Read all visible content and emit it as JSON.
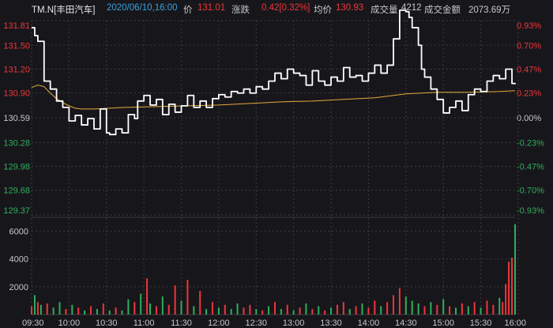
{
  "header": {
    "symbol": "TM.N[丰田汽车]",
    "datetime": "2020/06/10,16:00",
    "price_label": "价",
    "price": "131.01",
    "change_label": "涨跌",
    "change": "0.42[0.32%]",
    "avg_label": "均价",
    "avg": "130.93",
    "volume_label": "成交量",
    "volume": "4212",
    "amount_label": "成交金额",
    "amount": "2073.69万"
  },
  "colors": {
    "background": "#17171b",
    "price_line": "#ffffff",
    "avg_line": "#e7a93a",
    "up": "#f0353a",
    "down": "#2fae5c",
    "grid": "#3a3a40",
    "text_gray": "#c8c8c8",
    "datetime": "#3d9de0",
    "neutral_bar": "#d8d8d8"
  },
  "chart_data": {
    "type": "line",
    "x_ticks": [
      "09:30",
      "10:00",
      "10:30",
      "11:00",
      "11:30",
      "12:00",
      "12:30",
      "13:00",
      "13:30",
      "14:00",
      "14:30",
      "15:00",
      "15:30",
      "16:00"
    ],
    "price_axis": {
      "min": 129.37,
      "max": 131.81,
      "ticks": [
        131.81,
        131.5,
        131.2,
        130.9,
        130.59,
        130.28,
        129.98,
        129.68,
        129.37
      ],
      "pct_ticks": [
        "0.93%",
        "0.70%",
        "0.47%",
        "0.23%",
        "0.00%",
        "-0.23%",
        "-0.47%",
        "-0.70%",
        "-0.93%"
      ],
      "prev_close": 130.59
    },
    "price_series": [
      [
        0,
        131.72
      ],
      [
        1,
        131.62
      ],
      [
        2,
        131.55
      ],
      [
        4,
        131.05
      ],
      [
        6,
        130.95
      ],
      [
        8,
        130.8
      ],
      [
        10,
        130.72
      ],
      [
        12,
        130.55
      ],
      [
        14,
        130.62
      ],
      [
        16,
        130.5
      ],
      [
        18,
        130.58
      ],
      [
        20,
        130.45
      ],
      [
        22,
        130.7
      ],
      [
        24,
        130.4
      ],
      [
        25,
        130.38
      ],
      [
        27,
        130.45
      ],
      [
        29,
        130.4
      ],
      [
        31,
        130.63
      ],
      [
        33,
        130.58
      ],
      [
        34,
        130.8
      ],
      [
        36,
        130.87
      ],
      [
        38,
        130.75
      ],
      [
        40,
        130.82
      ],
      [
        42,
        130.63
      ],
      [
        44,
        130.76
      ],
      [
        46,
        130.66
      ],
      [
        48,
        130.74
      ],
      [
        50,
        130.87
      ],
      [
        52,
        130.72
      ],
      [
        54,
        130.8
      ],
      [
        56,
        130.72
      ],
      [
        58,
        130.83
      ],
      [
        60,
        130.88
      ],
      [
        62,
        130.85
      ],
      [
        64,
        130.92
      ],
      [
        66,
        130.9
      ],
      [
        68,
        130.95
      ],
      [
        70,
        130.9
      ],
      [
        72,
        130.98
      ],
      [
        74,
        130.95
      ],
      [
        76,
        131.05
      ],
      [
        78,
        131.15
      ],
      [
        80,
        131.08
      ],
      [
        82,
        131.2
      ],
      [
        84,
        131.15
      ],
      [
        86,
        131.12
      ],
      [
        88,
        131.0
      ],
      [
        90,
        131.18
      ],
      [
        92,
        131.05
      ],
      [
        94,
        131.0
      ],
      [
        96,
        131.1
      ],
      [
        98,
        131.05
      ],
      [
        100,
        131.22
      ],
      [
        102,
        131.1
      ],
      [
        104,
        131.12
      ],
      [
        106,
        131.05
      ],
      [
        108,
        131.15
      ],
      [
        110,
        131.25
      ],
      [
        112,
        131.15
      ],
      [
        114,
        131.25
      ],
      [
        116,
        131.58
      ],
      [
        118,
        131.94
      ],
      [
        120,
        131.92
      ],
      [
        121,
        131.85
      ],
      [
        122,
        131.72
      ],
      [
        124,
        131.5
      ],
      [
        125,
        131.2
      ],
      [
        126,
        131.1
      ],
      [
        128,
        130.95
      ],
      [
        130,
        130.82
      ],
      [
        132,
        130.65
      ],
      [
        134,
        130.72
      ],
      [
        136,
        130.8
      ],
      [
        138,
        130.68
      ],
      [
        140,
        130.88
      ],
      [
        142,
        130.95
      ],
      [
        144,
        130.92
      ],
      [
        146,
        131.05
      ],
      [
        148,
        131.12
      ],
      [
        150,
        131.08
      ],
      [
        152,
        131.2
      ],
      [
        154,
        131.02
      ],
      [
        155,
        131.01
      ]
    ],
    "avg_series": [
      [
        0,
        130.97
      ],
      [
        2,
        131.0
      ],
      [
        4,
        130.98
      ],
      [
        6,
        130.9
      ],
      [
        8,
        130.83
      ],
      [
        10,
        130.78
      ],
      [
        12,
        130.74
      ],
      [
        14,
        130.71
      ],
      [
        16,
        130.7
      ],
      [
        20,
        130.7
      ],
      [
        25,
        130.71
      ],
      [
        30,
        130.72
      ],
      [
        40,
        130.73
      ],
      [
        50,
        130.74
      ],
      [
        60,
        130.75
      ],
      [
        70,
        130.77
      ],
      [
        80,
        130.79
      ],
      [
        90,
        130.8
      ],
      [
        100,
        130.82
      ],
      [
        110,
        130.84
      ],
      [
        116,
        130.87
      ],
      [
        120,
        130.89
      ],
      [
        125,
        130.9
      ],
      [
        130,
        130.91
      ],
      [
        140,
        130.91
      ],
      [
        150,
        130.92
      ],
      [
        155,
        130.93
      ]
    ],
    "volume_axis": {
      "max": 7000,
      "ticks": [
        6000,
        4000,
        2000
      ]
    },
    "volume_series": [
      {
        "t": 0,
        "v": 600,
        "d": "up"
      },
      {
        "t": 1,
        "v": 1400,
        "d": "down"
      },
      {
        "t": 2,
        "v": 900,
        "d": "up"
      },
      {
        "t": 3,
        "v": 700,
        "d": "down"
      },
      {
        "t": 5,
        "v": 800,
        "d": "up"
      },
      {
        "t": 7,
        "v": 500,
        "d": "down"
      },
      {
        "t": 9,
        "v": 900,
        "d": "down"
      },
      {
        "t": 11,
        "v": 400,
        "d": "up"
      },
      {
        "t": 13,
        "v": 700,
        "d": "down"
      },
      {
        "t": 15,
        "v": 500,
        "d": "up"
      },
      {
        "t": 17,
        "v": 300,
        "d": "down"
      },
      {
        "t": 19,
        "v": 600,
        "d": "up"
      },
      {
        "t": 21,
        "v": 400,
        "d": "down"
      },
      {
        "t": 23,
        "v": 800,
        "d": "up"
      },
      {
        "t": 25,
        "v": 300,
        "d": "down"
      },
      {
        "t": 27,
        "v": 500,
        "d": "up"
      },
      {
        "t": 29,
        "v": 300,
        "d": "down"
      },
      {
        "t": 31,
        "v": 1100,
        "d": "down"
      },
      {
        "t": 33,
        "v": 900,
        "d": "up"
      },
      {
        "t": 35,
        "v": 1500,
        "d": "down"
      },
      {
        "t": 37,
        "v": 2600,
        "d": "up"
      },
      {
        "t": 38,
        "v": 800,
        "d": "down"
      },
      {
        "t": 40,
        "v": 600,
        "d": "up"
      },
      {
        "t": 42,
        "v": 1300,
        "d": "down"
      },
      {
        "t": 44,
        "v": 700,
        "d": "up"
      },
      {
        "t": 46,
        "v": 2100,
        "d": "up"
      },
      {
        "t": 48,
        "v": 1000,
        "d": "down"
      },
      {
        "t": 50,
        "v": 2500,
        "d": "up"
      },
      {
        "t": 52,
        "v": 600,
        "d": "down"
      },
      {
        "t": 54,
        "v": 1700,
        "d": "up"
      },
      {
        "t": 56,
        "v": 400,
        "d": "down"
      },
      {
        "t": 58,
        "v": 900,
        "d": "up"
      },
      {
        "t": 60,
        "v": 500,
        "d": "down"
      },
      {
        "t": 62,
        "v": 700,
        "d": "up"
      },
      {
        "t": 64,
        "v": 400,
        "d": "down"
      },
      {
        "t": 66,
        "v": 800,
        "d": "down"
      },
      {
        "t": 68,
        "v": 500,
        "d": "up"
      },
      {
        "t": 70,
        "v": 700,
        "d": "up"
      },
      {
        "t": 72,
        "v": 400,
        "d": "down"
      },
      {
        "t": 74,
        "v": 300,
        "d": "up"
      },
      {
        "t": 76,
        "v": 600,
        "d": "down"
      },
      {
        "t": 78,
        "v": 900,
        "d": "up"
      },
      {
        "t": 80,
        "v": 400,
        "d": "down"
      },
      {
        "t": 82,
        "v": 700,
        "d": "up"
      },
      {
        "t": 84,
        "v": 300,
        "d": "down"
      },
      {
        "t": 86,
        "v": 500,
        "d": "up"
      },
      {
        "t": 88,
        "v": 800,
        "d": "down"
      },
      {
        "t": 90,
        "v": 400,
        "d": "up"
      },
      {
        "t": 92,
        "v": 600,
        "d": "down"
      },
      {
        "t": 94,
        "v": 300,
        "d": "up"
      },
      {
        "t": 96,
        "v": 500,
        "d": "down"
      },
      {
        "t": 98,
        "v": 700,
        "d": "up"
      },
      {
        "t": 100,
        "v": 900,
        "d": "up"
      },
      {
        "t": 102,
        "v": 400,
        "d": "down"
      },
      {
        "t": 104,
        "v": 600,
        "d": "up"
      },
      {
        "t": 106,
        "v": 800,
        "d": "down"
      },
      {
        "t": 108,
        "v": 500,
        "d": "up"
      },
      {
        "t": 110,
        "v": 1000,
        "d": "up"
      },
      {
        "t": 112,
        "v": 600,
        "d": "down"
      },
      {
        "t": 114,
        "v": 900,
        "d": "up"
      },
      {
        "t": 116,
        "v": 1400,
        "d": "up"
      },
      {
        "t": 118,
        "v": 1900,
        "d": "up"
      },
      {
        "t": 120,
        "v": 1300,
        "d": "down"
      },
      {
        "t": 122,
        "v": 1000,
        "d": "down"
      },
      {
        "t": 124,
        "v": 800,
        "d": "down"
      },
      {
        "t": 126,
        "v": 600,
        "d": "up"
      },
      {
        "t": 128,
        "v": 900,
        "d": "down"
      },
      {
        "t": 130,
        "v": 700,
        "d": "up"
      },
      {
        "t": 132,
        "v": 1100,
        "d": "down"
      },
      {
        "t": 134,
        "v": 600,
        "d": "up"
      },
      {
        "t": 136,
        "v": 500,
        "d": "down"
      },
      {
        "t": 138,
        "v": 800,
        "d": "up"
      },
      {
        "t": 140,
        "v": 600,
        "d": "down"
      },
      {
        "t": 142,
        "v": 900,
        "d": "up"
      },
      {
        "t": 144,
        "v": 500,
        "d": "down"
      },
      {
        "t": 146,
        "v": 1000,
        "d": "up"
      },
      {
        "t": 148,
        "v": 700,
        "d": "up"
      },
      {
        "t": 150,
        "v": 1200,
        "d": "down"
      },
      {
        "t": 151,
        "v": 900,
        "d": "up"
      },
      {
        "t": 152,
        "v": 2200,
        "d": "up"
      },
      {
        "t": 153,
        "v": 3800,
        "d": "up"
      },
      {
        "t": 154,
        "v": 4100,
        "d": "up"
      },
      {
        "t": 155,
        "v": 6500,
        "d": "down"
      }
    ]
  }
}
